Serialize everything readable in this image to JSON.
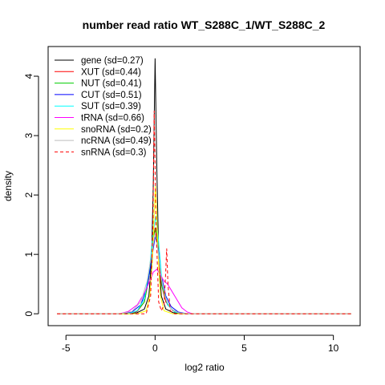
{
  "chart_data": {
    "type": "line",
    "title": "number read ratio WT_S288C_1/WT_S288C_2",
    "xlabel": "log2 ratio",
    "ylabel": "density",
    "xlim": [
      -6.0,
      11.5
    ],
    "ylim": [
      -0.2,
      4.5
    ],
    "xticks": [
      -5,
      0,
      5,
      10
    ],
    "yticks": [
      0,
      1,
      2,
      3,
      4
    ],
    "grid": false,
    "legend_position": "top-left",
    "series": [
      {
        "name": "gene (sd=0.27)",
        "color": "#000000",
        "dash": "solid",
        "points": [
          [
            -5.5,
            0
          ],
          [
            -1.5,
            0
          ],
          [
            -1.0,
            0.02
          ],
          [
            -0.6,
            0.08
          ],
          [
            -0.35,
            0.3
          ],
          [
            -0.2,
            0.9
          ],
          [
            -0.1,
            2.2
          ],
          [
            0.0,
            4.3
          ],
          [
            0.1,
            2.4
          ],
          [
            0.2,
            1.0
          ],
          [
            0.35,
            0.3
          ],
          [
            0.6,
            0.08
          ],
          [
            1.0,
            0.02
          ],
          [
            1.5,
            0
          ],
          [
            11,
            0
          ]
        ]
      },
      {
        "name": "XUT (sd=0.44)",
        "color": "#ff0000",
        "dash": "solid",
        "points": [
          [
            -5.5,
            0
          ],
          [
            -1.5,
            0
          ],
          [
            -1.0,
            0.04
          ],
          [
            -0.6,
            0.2
          ],
          [
            -0.35,
            0.6
          ],
          [
            -0.15,
            1.2
          ],
          [
            0.0,
            1.45
          ],
          [
            0.15,
            1.1
          ],
          [
            0.35,
            0.5
          ],
          [
            0.6,
            0.2
          ],
          [
            1.0,
            0.05
          ],
          [
            1.5,
            0
          ],
          [
            11,
            0
          ]
        ]
      },
      {
        "name": "NUT (sd=0.41)",
        "color": "#00cd00",
        "dash": "solid",
        "points": [
          [
            -5.5,
            0
          ],
          [
            -1.5,
            0
          ],
          [
            -1.0,
            0.05
          ],
          [
            -0.6,
            0.2
          ],
          [
            -0.3,
            0.7
          ],
          [
            -0.1,
            1.3
          ],
          [
            0.05,
            1.45
          ],
          [
            0.2,
            1.0
          ],
          [
            0.4,
            0.45
          ],
          [
            0.7,
            0.15
          ],
          [
            1.1,
            0.03
          ],
          [
            1.6,
            0
          ],
          [
            11,
            0
          ]
        ]
      },
      {
        "name": "CUT (sd=0.51)",
        "color": "#0000ff",
        "dash": "solid",
        "points": [
          [
            -5.5,
            0
          ],
          [
            -2.0,
            0
          ],
          [
            -1.3,
            0.03
          ],
          [
            -0.8,
            0.15
          ],
          [
            -0.45,
            0.45
          ],
          [
            -0.2,
            0.9
          ],
          [
            0.0,
            1.3
          ],
          [
            0.15,
            1.15
          ],
          [
            0.35,
            0.65
          ],
          [
            0.6,
            0.3
          ],
          [
            0.9,
            0.12
          ],
          [
            1.3,
            0.03
          ],
          [
            1.8,
            0
          ],
          [
            11,
            0
          ]
        ]
      },
      {
        "name": "SUT (sd=0.39)",
        "color": "#00ffff",
        "dash": "solid",
        "points": [
          [
            -5.5,
            0
          ],
          [
            -1.5,
            0
          ],
          [
            -1.0,
            0.05
          ],
          [
            -0.6,
            0.25
          ],
          [
            -0.3,
            0.8
          ],
          [
            -0.1,
            1.4
          ],
          [
            0.05,
            1.65
          ],
          [
            0.2,
            1.2
          ],
          [
            0.4,
            0.5
          ],
          [
            0.7,
            0.15
          ],
          [
            1.1,
            0.03
          ],
          [
            1.6,
            0
          ],
          [
            11,
            0
          ]
        ]
      },
      {
        "name": "tRNA (sd=0.66)",
        "color": "#ff00ff",
        "dash": "solid",
        "points": [
          [
            -5.5,
            0
          ],
          [
            -2.0,
            0
          ],
          [
            -1.5,
            0.04
          ],
          [
            -1.0,
            0.15
          ],
          [
            -0.6,
            0.35
          ],
          [
            -0.3,
            0.55
          ],
          [
            -0.1,
            0.7
          ],
          [
            0.1,
            0.75
          ],
          [
            0.3,
            0.65
          ],
          [
            0.5,
            0.55
          ],
          [
            0.7,
            0.5
          ],
          [
            0.9,
            0.4
          ],
          [
            1.1,
            0.3
          ],
          [
            1.3,
            0.2
          ],
          [
            1.5,
            0.1
          ],
          [
            1.8,
            0.03
          ],
          [
            2.1,
            0
          ],
          [
            11,
            0
          ]
        ]
      },
      {
        "name": "snoRNA (sd=0.2)",
        "color": "#ffff00",
        "dash": "solid",
        "points": [
          [
            -5.5,
            0
          ],
          [
            -1.0,
            0
          ],
          [
            -0.5,
            0.05
          ],
          [
            -0.3,
            0.3
          ],
          [
            -0.15,
            0.9
          ],
          [
            -0.05,
            1.7
          ],
          [
            0.02,
            2.15
          ],
          [
            0.1,
            1.6
          ],
          [
            0.2,
            0.8
          ],
          [
            0.3,
            0.3
          ],
          [
            0.5,
            0.05
          ],
          [
            1.0,
            0
          ],
          [
            11,
            0
          ]
        ]
      },
      {
        "name": "ncRNA (sd=0.49)",
        "color": "#bebebe",
        "dash": "solid",
        "points": [
          [
            -5.5,
            0
          ],
          [
            -2.0,
            0
          ],
          [
            -1.3,
            0.04
          ],
          [
            -0.8,
            0.2
          ],
          [
            -0.45,
            0.55
          ],
          [
            -0.2,
            1.0
          ],
          [
            0.0,
            1.35
          ],
          [
            0.15,
            1.1
          ],
          [
            0.35,
            0.6
          ],
          [
            0.6,
            0.25
          ],
          [
            0.9,
            0.08
          ],
          [
            1.3,
            0.02
          ],
          [
            1.8,
            0
          ],
          [
            11,
            0
          ]
        ]
      },
      {
        "name": "snRNA (sd=0.3)",
        "color": "#ff0000",
        "dash": "dashed",
        "points": [
          [
            -5.5,
            0
          ],
          [
            -0.5,
            0
          ],
          [
            -0.25,
            0.3
          ],
          [
            -0.12,
            1.5
          ],
          [
            -0.05,
            3.42
          ],
          [
            0.05,
            1.5
          ],
          [
            0.2,
            0.2
          ],
          [
            0.35,
            0.05
          ],
          [
            0.5,
            0.15
          ],
          [
            0.58,
            0.6
          ],
          [
            0.65,
            1.1
          ],
          [
            0.72,
            0.5
          ],
          [
            0.85,
            0.05
          ],
          [
            1.1,
            0
          ],
          [
            11,
            0
          ]
        ]
      }
    ]
  }
}
